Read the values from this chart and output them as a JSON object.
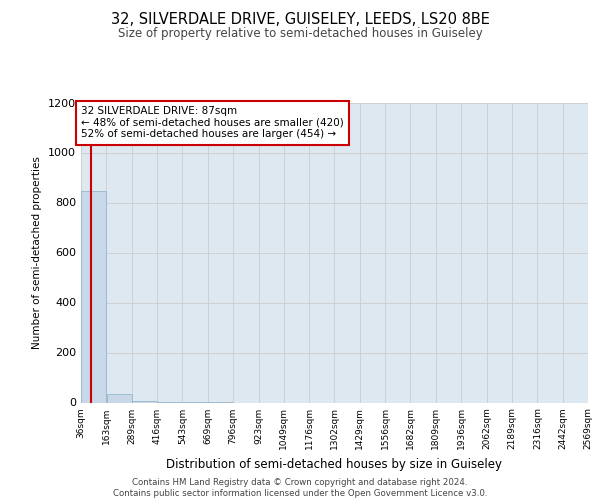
{
  "title": "32, SILVERDALE DRIVE, GUISELEY, LEEDS, LS20 8BE",
  "subtitle": "Size of property relative to semi-detached houses in Guiseley",
  "xlabel": "Distribution of semi-detached houses by size in Guiseley",
  "ylabel": "Number of semi-detached properties",
  "footer_line1": "Contains HM Land Registry data © Crown copyright and database right 2024.",
  "footer_line2": "Contains public sector information licensed under the Open Government Licence v3.0.",
  "annotation_line1": "32 SILVERDALE DRIVE: 87sqm",
  "annotation_line2": "← 48% of semi-detached houses are smaller (420)",
  "annotation_line3": "52% of semi-detached houses are larger (454) →",
  "property_size": 87,
  "bin_edges": [
    36,
    163,
    289,
    416,
    543,
    669,
    796,
    923,
    1049,
    1176,
    1302,
    1429,
    1556,
    1682,
    1809,
    1936,
    2062,
    2189,
    2316,
    2442,
    2569
  ],
  "bar_heights": [
    848,
    35,
    5,
    2,
    1,
    1,
    0,
    0,
    0,
    0,
    0,
    0,
    0,
    0,
    0,
    0,
    0,
    0,
    0,
    0
  ],
  "bar_color": "#c8d8e8",
  "bar_edge_color": "#8ab0c8",
  "red_line_color": "#cc0000",
  "grid_color": "#cccccc",
  "background_color": "#dde8f0",
  "ylim": [
    0,
    1200
  ],
  "yticks": [
    0,
    200,
    400,
    600,
    800,
    1000,
    1200
  ],
  "tick_labels": [
    "36sqm",
    "163sqm",
    "289sqm",
    "416sqm",
    "543sqm",
    "669sqm",
    "796sqm",
    "923sqm",
    "1049sqm",
    "1176sqm",
    "1302sqm",
    "1429sqm",
    "1556sqm",
    "1682sqm",
    "1809sqm",
    "1936sqm",
    "2062sqm",
    "2189sqm",
    "2316sqm",
    "2442sqm",
    "2569sqm"
  ]
}
